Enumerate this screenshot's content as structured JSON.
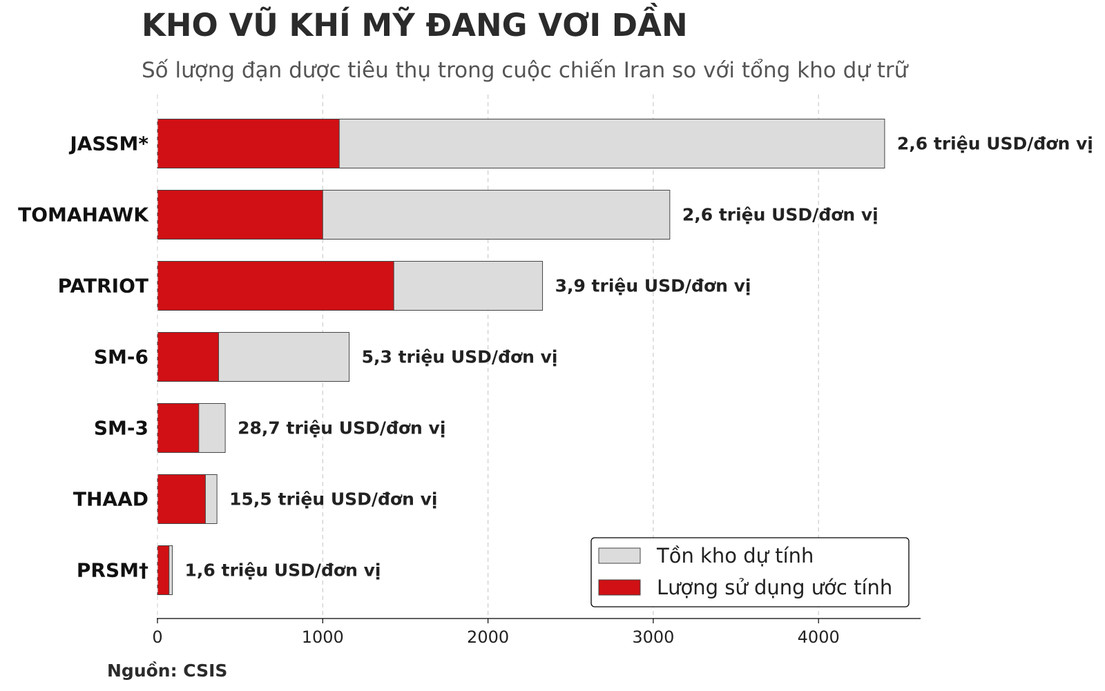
{
  "header": {
    "title": "KHO VŨ KHÍ MỸ ĐANG VƠI DẦN",
    "subtitle": "Số lượng đạn dược tiêu thụ trong cuộc chiến Iran so với tổng kho dự trữ"
  },
  "footer": {
    "source": "Nguồn: CSIS"
  },
  "colors": {
    "stock": "#dcdcdc",
    "used": "#d01014",
    "edge": "#444444",
    "grid": "#cccccc"
  },
  "chart_data": {
    "type": "bar",
    "orientation": "horizontal",
    "stacking": "overlay",
    "categories": [
      "JASSM*",
      "TOMAHAWK",
      "PATRIOT",
      "SM-6",
      "SM-3",
      "THAAD",
      "PRSM†"
    ],
    "series": [
      {
        "name": "Tồn kho dự tính",
        "values": [
          4400,
          3100,
          2330,
          1160,
          410,
          360,
          90
        ]
      },
      {
        "name": "Lượng sử dụng ước tính",
        "values": [
          1100,
          1000,
          1430,
          370,
          250,
          290,
          70
        ]
      }
    ],
    "data_labels": [
      "2,6 triệu USD/đơn vị",
      "2,6 triệu USD/đơn vị",
      "3,9 triệu USD/đơn vị",
      "5,3 triệu USD/đơn vị",
      "28,7 triệu USD/đơn vị",
      "15,5 triệu USD/đơn vị",
      "1,6 triệu USD/đơn vị"
    ],
    "xticks": [
      0,
      1000,
      2000,
      3000,
      4000
    ],
    "xlim": [
      0,
      4620
    ],
    "grid": "vertical dashed",
    "legend_position": "lower-right"
  }
}
